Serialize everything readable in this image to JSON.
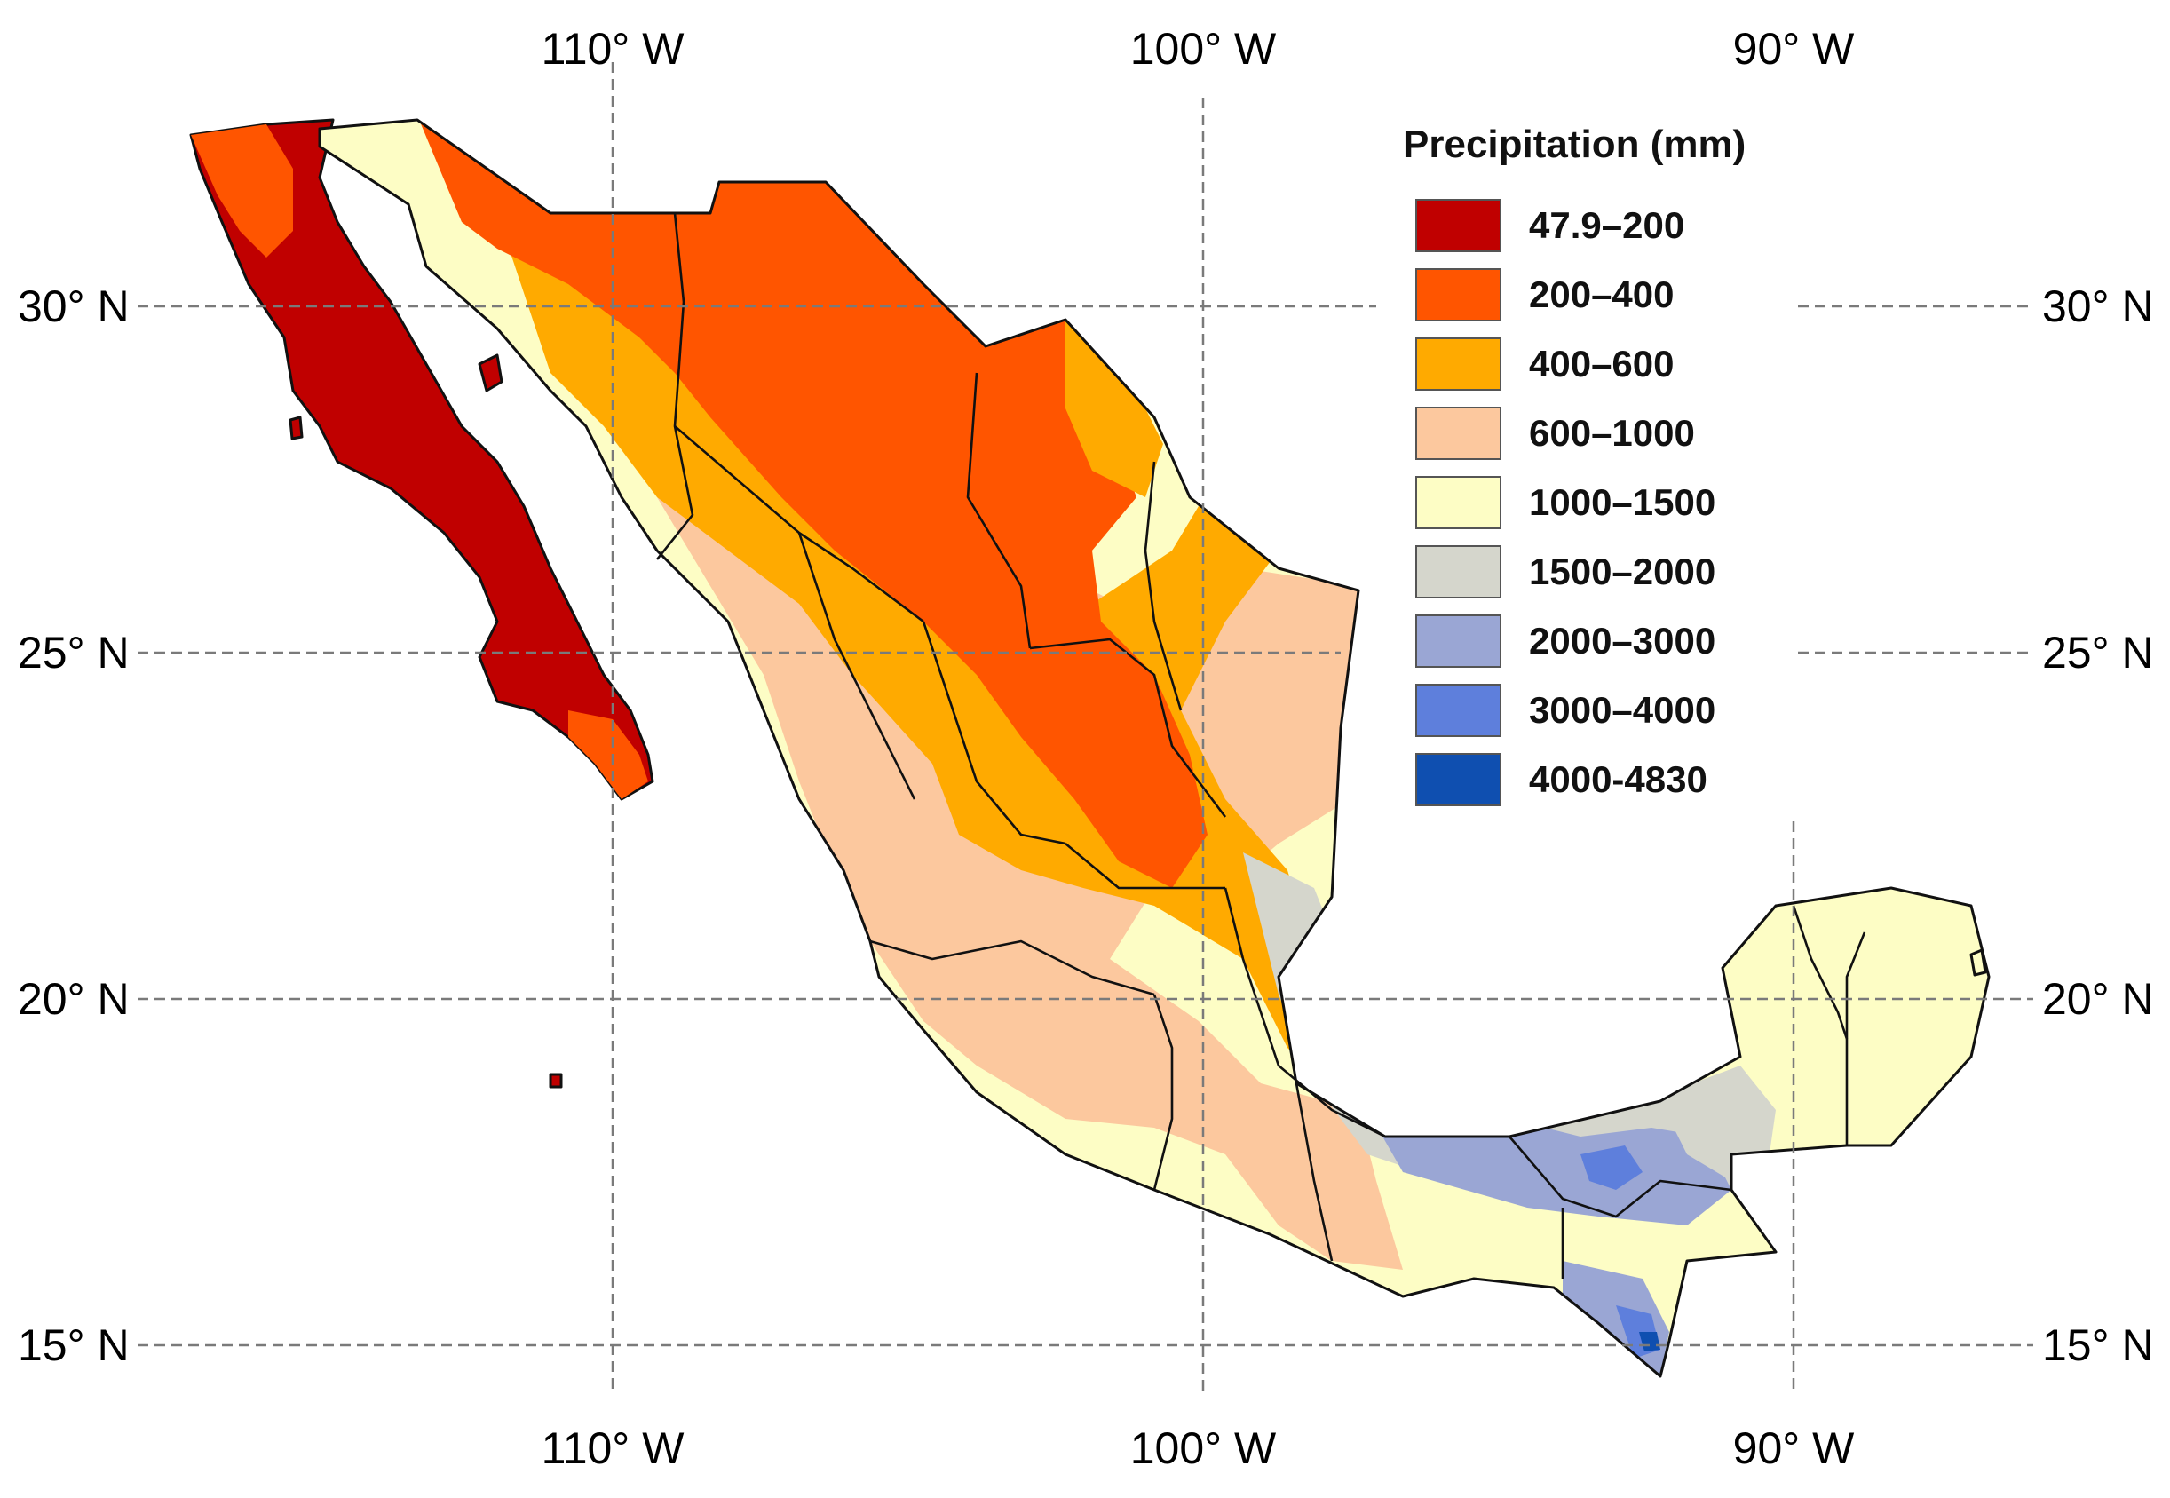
{
  "map": {
    "longitude_labels": [
      "110° W",
      "100° W",
      "90° W"
    ],
    "latitude_labels": [
      "30° N",
      "25° N",
      "20° N",
      "15° N"
    ]
  },
  "legend": {
    "title": "Precipitation (mm)",
    "classes": [
      {
        "label": "47.9–200",
        "color": "#c00000"
      },
      {
        "label": "200–400",
        "color": "#ff5500"
      },
      {
        "label": "400–600",
        "color": "#ffaa00"
      },
      {
        "label": "600–1000",
        "color": "#fcc89e"
      },
      {
        "label": "1000–1500",
        "color": "#fdfdc5"
      },
      {
        "label": "1500–2000",
        "color": "#d5d6cc"
      },
      {
        "label": "2000–3000",
        "color": "#9aa6d4"
      },
      {
        "label": "3000–4000",
        "color": "#5e7fdc"
      },
      {
        "label": "4000-4830",
        "color": "#0f4fb0"
      }
    ]
  }
}
